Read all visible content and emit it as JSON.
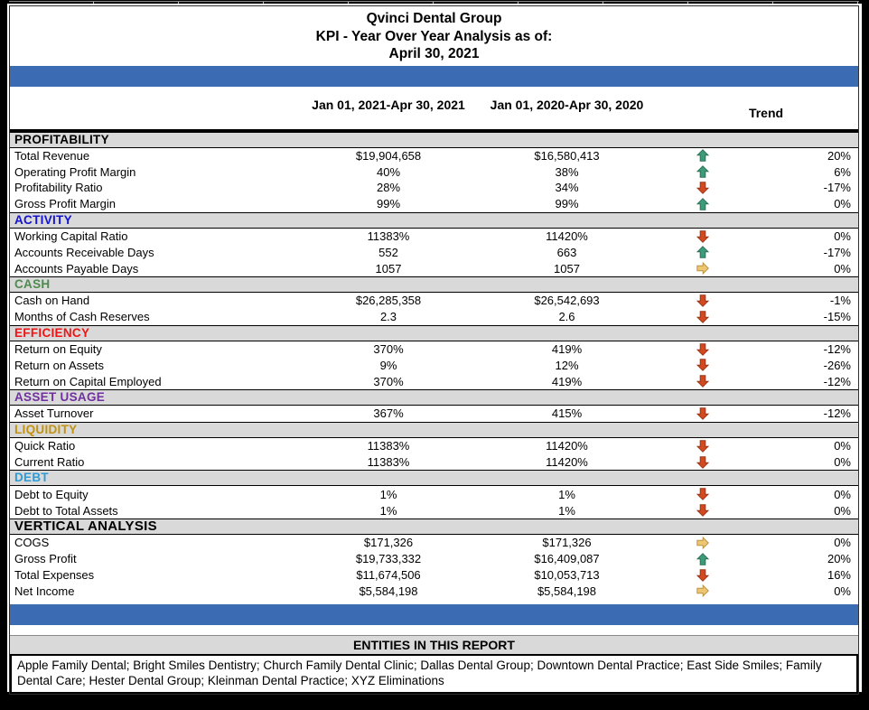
{
  "report": {
    "title": "Qvinci Dental Group",
    "subtitle": "KPI - Year Over Year Analysis as of:",
    "as_of_date": "April 30, 2021"
  },
  "columns": {
    "period_current": "Jan 01, 2021-Apr 30, 2021",
    "period_prior": "Jan 01, 2020-Apr 30, 2020",
    "trend": "Trend"
  },
  "sections": [
    {
      "name": "PROFITABILITY",
      "color": "#000000",
      "large": false,
      "rows": [
        {
          "label": "Total Revenue",
          "v1": "$19,904,658",
          "v2": "$16,580,413",
          "arrow": "up",
          "pct": "20%"
        },
        {
          "label": "Operating Profit Margin",
          "v1": "40%",
          "v2": "38%",
          "arrow": "up",
          "pct": "6%"
        },
        {
          "label": "Profitability Ratio",
          "v1": "28%",
          "v2": "34%",
          "arrow": "down",
          "pct": "-17%"
        },
        {
          "label": "Gross Profit Margin",
          "v1": "99%",
          "v2": "99%",
          "arrow": "up",
          "pct": "0%"
        }
      ]
    },
    {
      "name": "ACTIVITY",
      "color": "#1512d0",
      "large": false,
      "rows": [
        {
          "label": "Working Capital Ratio",
          "v1": "11383%",
          "v2": "11420%",
          "arrow": "down",
          "pct": "0%"
        },
        {
          "label": "Accounts Receivable Days",
          "v1": "552",
          "v2": "663",
          "arrow": "up",
          "pct": "-17%"
        },
        {
          "label": "Accounts Payable Days",
          "v1": "1057",
          "v2": "1057",
          "arrow": "right",
          "pct": "0%"
        }
      ]
    },
    {
      "name": "CASH",
      "color": "#4e8b4e",
      "large": false,
      "rows": [
        {
          "label": "Cash on Hand",
          "v1": "$26,285,358",
          "v2": "$26,542,693",
          "arrow": "down",
          "pct": "-1%"
        },
        {
          "label": "Months of Cash Reserves",
          "v1": "2.3",
          "v2": "2.6",
          "arrow": "down",
          "pct": "-15%"
        }
      ]
    },
    {
      "name": "EFFICIENCY",
      "color": "#f21414",
      "large": false,
      "rows": [
        {
          "label": "Return on Equity",
          "v1": "370%",
          "v2": "419%",
          "arrow": "down",
          "pct": "-12%"
        },
        {
          "label": "Return on Assets",
          "v1": "9%",
          "v2": "12%",
          "arrow": "down",
          "pct": "-26%"
        },
        {
          "label": "Return on Capital Employed",
          "v1": "370%",
          "v2": "419%",
          "arrow": "down",
          "pct": "-12%"
        }
      ]
    },
    {
      "name": "ASSET USAGE",
      "color": "#7030a0",
      "large": false,
      "rows": [
        {
          "label": "Asset Turnover",
          "v1": "367%",
          "v2": "415%",
          "arrow": "down",
          "pct": "-12%"
        }
      ]
    },
    {
      "name": "LIQUIDITY",
      "color": "#c29210",
      "large": false,
      "rows": [
        {
          "label": "Quick Ratio",
          "v1": "11383%",
          "v2": "11420%",
          "arrow": "down",
          "pct": "0%"
        },
        {
          "label": "Current Ratio",
          "v1": "11383%",
          "v2": "11420%",
          "arrow": "down",
          "pct": "0%"
        }
      ]
    },
    {
      "name": "DEBT",
      "color": "#2e9bd6",
      "large": false,
      "rows": [
        {
          "label": "Debt to Equity",
          "v1": "1%",
          "v2": "1%",
          "arrow": "down",
          "pct": "0%"
        },
        {
          "label": "Debt to Total Assets",
          "v1": "1%",
          "v2": "1%",
          "arrow": "down",
          "pct": "0%"
        }
      ]
    },
    {
      "name": "VERTICAL ANALYSIS",
      "color": "#000000",
      "large": true,
      "rows": [
        {
          "label": "COGS",
          "v1": "$171,326",
          "v2": "$171,326",
          "arrow": "right",
          "pct": "0%"
        },
        {
          "label": "Gross Profit",
          "v1": "$19,733,332",
          "v2": "$16,409,087",
          "arrow": "up",
          "pct": "20%"
        },
        {
          "label": "Total Expenses",
          "v1": "$11,674,506",
          "v2": "$10,053,713",
          "arrow": "down",
          "pct": "16%"
        },
        {
          "label": "Net Income",
          "v1": "$5,584,198",
          "v2": "$5,584,198",
          "arrow": "right",
          "pct": "0%"
        }
      ]
    }
  ],
  "footer": {
    "entities_header": "ENTITIES IN THIS REPORT",
    "entities": "Apple Family Dental; Bright Smiles Dentistry; Church Family Dental Clinic; Dallas Dental Group; Downtown Dental Practice; East Side Smiles; Family Dental Care; Hester Dental Group; Kleinman Dental Practice; XYZ Eliminations"
  },
  "colors": {
    "accent_bar": "#3a6bb3",
    "band_bg": "#d9d9d9",
    "arrow_up_fill": "#3e9b7a",
    "arrow_up_stroke": "#2b7058",
    "arrow_down_fill": "#d14a21",
    "arrow_down_stroke": "#993517",
    "arrow_right_fill": "#ecc673",
    "arrow_right_stroke": "#bc9440"
  }
}
